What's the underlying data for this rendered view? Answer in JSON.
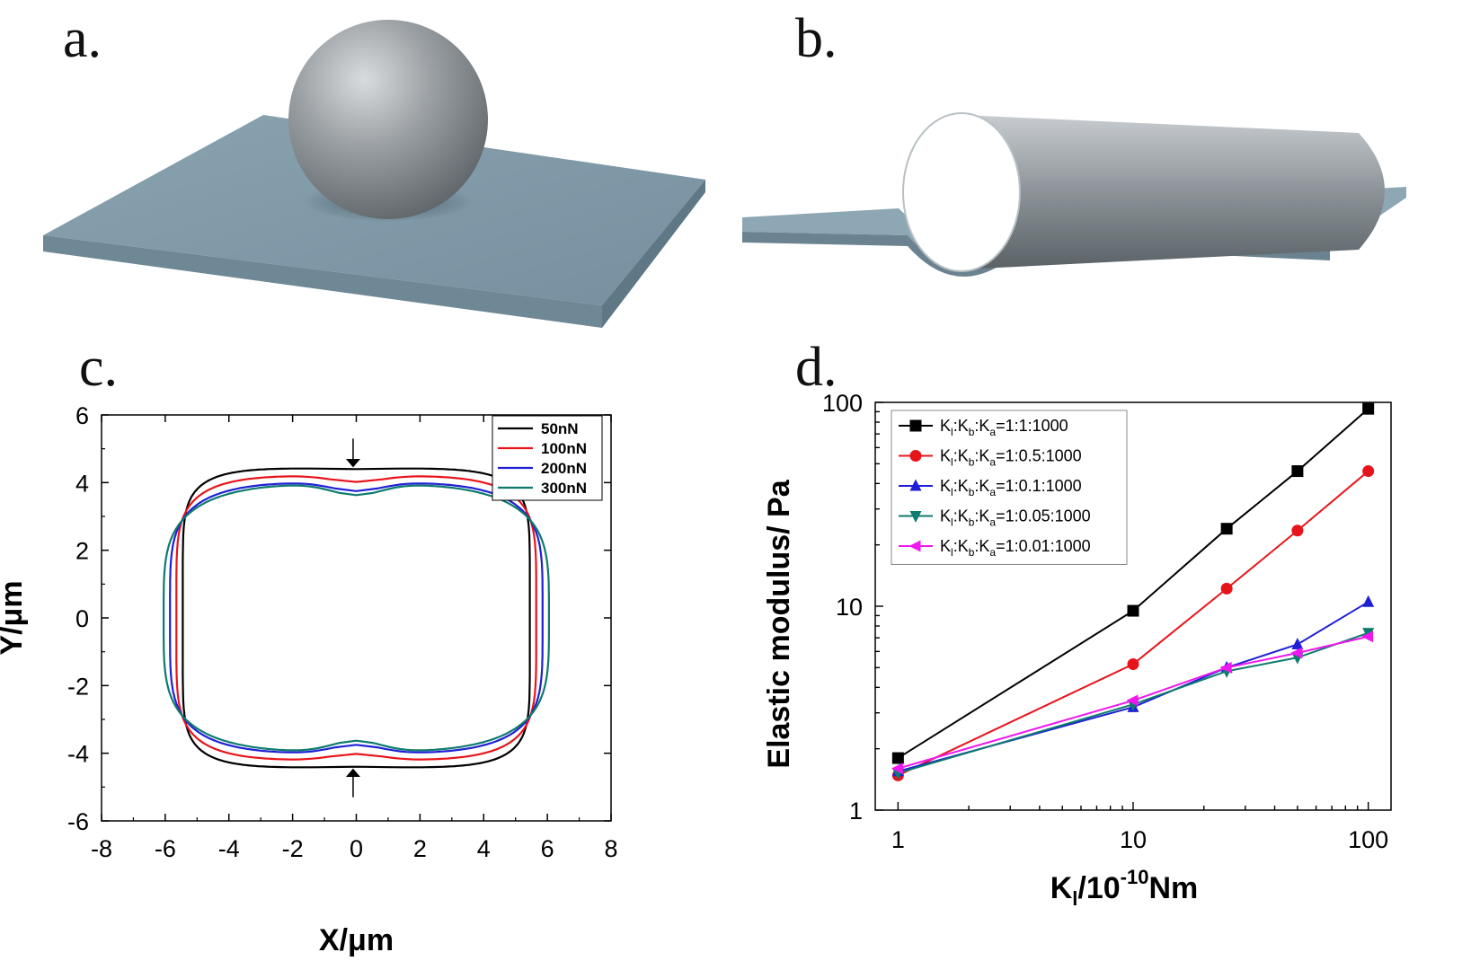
{
  "panels": {
    "a": {
      "label": "a."
    },
    "b": {
      "label": "b."
    },
    "c": {
      "label": "c."
    },
    "d": {
      "label": "d."
    }
  },
  "colors": {
    "black": "#000000",
    "red": "#e8141b",
    "blue": "#1f20d6",
    "teal": "#0e7b6e",
    "magenta": "#ef18ef",
    "plate": "#7f9aa8",
    "sphere": "#8d9296"
  },
  "chart_c": {
    "type": "line",
    "xlabel": "X/μm",
    "ylabel": "Y/μm",
    "xlim": [
      -8,
      8
    ],
    "ylim": [
      -6,
      6
    ],
    "xticks": [
      "-8",
      "-6",
      "-4",
      "-2",
      "0",
      "2",
      "4",
      "6",
      "8"
    ],
    "yticks": [
      "-6",
      "-4",
      "-2",
      "0",
      "2",
      "4",
      "6"
    ],
    "legend": [
      "50nN",
      "100nN",
      "200nN",
      "300nN"
    ],
    "legend_position": "top-right",
    "annotation": "arrows at x=0 on top and bottom indicating compression"
  },
  "chart_data": {
    "type": "line",
    "log_x": true,
    "log_y": true,
    "xlabel_main": "K",
    "xlabel_sub": "l",
    "xlabel_rest": "/10",
    "xlabel_sup": "-10",
    "xlabel_unit": "Nm",
    "ylabel": "Elastic modulus/ Pa",
    "xlim": [
      0.8,
      125
    ],
    "ylim": [
      1,
      100
    ],
    "xticks": [
      "1",
      "10",
      "100"
    ],
    "yticks": [
      "1",
      "10",
      "100"
    ],
    "legend_position": "top-left",
    "x": [
      1,
      10,
      25,
      50,
      100
    ],
    "series": [
      {
        "name": "Kl:Kb:Ka=1:1:1000",
        "ratio": "1:1:1000",
        "color": "#000000",
        "marker": "square",
        "values": [
          1.8,
          9.5,
          24,
          46,
          93
        ]
      },
      {
        "name": "Kl:Kb:Ka=1:0.5:1000",
        "ratio": "1:0.5:1000",
        "color": "#e8141b",
        "marker": "circle",
        "values": [
          1.48,
          5.2,
          12.2,
          23.5,
          46
        ]
      },
      {
        "name": "Kl:Kb:Ka=1:0.1:1000",
        "ratio": "1:0.1:1000",
        "color": "#1f20d6",
        "marker": "triangle-up",
        "values": [
          1.55,
          3.2,
          5.0,
          6.5,
          10.5
        ]
      },
      {
        "name": "Kl:Kb:Ka=1:0.05:1000",
        "ratio": "1:0.05:1000",
        "color": "#0e7b6e",
        "marker": "triangle-down",
        "values": [
          1.52,
          3.3,
          4.8,
          5.6,
          7.4
        ]
      },
      {
        "name": "Kl:Kb:Ka=1:0.01:1000",
        "ratio": "1:0.01:1000",
        "color": "#ef18ef",
        "marker": "triangle-left",
        "values": [
          1.6,
          3.45,
          5.0,
          5.9,
          7.1
        ]
      }
    ]
  }
}
